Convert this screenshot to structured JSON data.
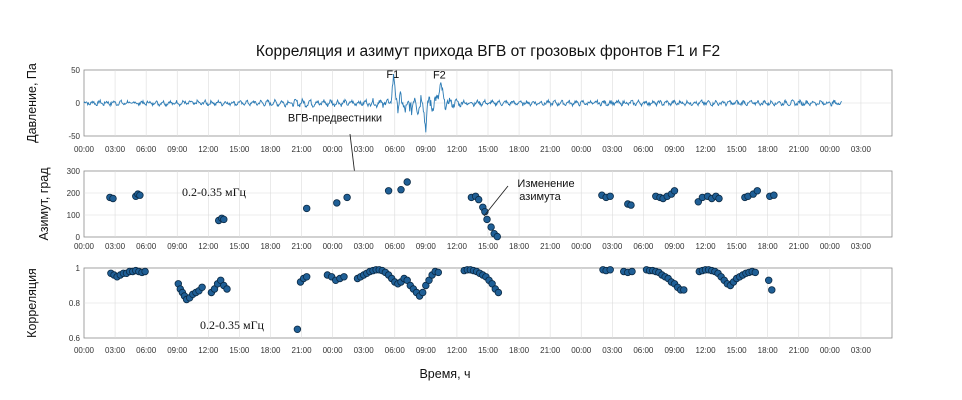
{
  "chart_data": {
    "type": "multi-panel",
    "title": "Корреляция и азимут прихода ВГВ от грозовых фронтов F1 и F2",
    "xlabel": "Время, ч",
    "x_tick_labels": [
      "00:00",
      "03:00",
      "06:00",
      "09:00",
      "12:00",
      "15:00",
      "18:00",
      "21:00",
      "00:00",
      "03:00",
      "06:00",
      "09:00",
      "12:00",
      "15:00",
      "18:00",
      "21:00",
      "00:00",
      "03:00",
      "06:00",
      "09:00",
      "12:00",
      "15:00",
      "18:00",
      "21:00",
      "00:00",
      "03:00"
    ],
    "x_tick_values_h": [
      0,
      3,
      6,
      9,
      12,
      15,
      18,
      21,
      24,
      27,
      30,
      33,
      36,
      39,
      42,
      45,
      48,
      51,
      54,
      57,
      60,
      63,
      66,
      69,
      72,
      75
    ],
    "xlim_h": [
      0,
      78
    ],
    "panels": [
      {
        "id": "pressure",
        "type": "line",
        "ylabel": "Давление, Па",
        "ylim": [
          -50,
          50
        ],
        "y_tick_values": [
          50,
          0,
          -50
        ],
        "y_tick_labels": [
          "50",
          "0",
          "-50"
        ],
        "color": "#2b7bb5",
        "series_description": "noise baseline ±5 Pa with bursts near F1 and F2",
        "events": [
          {
            "label": "F1",
            "x_h": 30.0,
            "y": 38
          },
          {
            "label": "F2",
            "x_h": 34.5,
            "y": 37
          }
        ],
        "annotation": {
          "text": "ВГВ-предвестники",
          "x_h": 25.0,
          "y": -28
        }
      },
      {
        "id": "azimuth",
        "type": "scatter",
        "ylabel": "Азимут, град",
        "ylim": [
          0,
          300
        ],
        "y_tick_values": [
          300,
          200,
          100,
          0
        ],
        "y_tick_labels": [
          "300",
          "200",
          "100",
          "0"
        ],
        "color": "#1f5f96",
        "band_label": "0.2-0.35 мГц",
        "annotation": {
          "text_line1": "Изменение",
          "text_line2": "азимута",
          "x_h": 40.3,
          "y": 210
        },
        "points": [
          [
            2.5,
            180
          ],
          [
            2.8,
            175
          ],
          [
            5.0,
            185
          ],
          [
            5.2,
            195
          ],
          [
            5.4,
            190
          ],
          [
            13.0,
            75
          ],
          [
            13.3,
            85
          ],
          [
            13.5,
            80
          ],
          [
            21.5,
            130
          ],
          [
            24.4,
            155
          ],
          [
            25.4,
            180
          ],
          [
            29.4,
            210
          ],
          [
            30.6,
            215
          ],
          [
            31.2,
            250
          ],
          [
            37.4,
            180
          ],
          [
            37.8,
            185
          ],
          [
            38.1,
            170
          ],
          [
            38.5,
            135
          ],
          [
            38.7,
            115
          ],
          [
            38.9,
            80
          ],
          [
            39.3,
            45
          ],
          [
            39.6,
            15
          ],
          [
            39.9,
            2
          ],
          [
            50.0,
            190
          ],
          [
            50.4,
            180
          ],
          [
            50.8,
            185
          ],
          [
            52.5,
            150
          ],
          [
            52.8,
            145
          ],
          [
            55.2,
            185
          ],
          [
            55.6,
            180
          ],
          [
            55.9,
            175
          ],
          [
            56.3,
            185
          ],
          [
            56.7,
            195
          ],
          [
            57.0,
            210
          ],
          [
            59.3,
            160
          ],
          [
            59.7,
            180
          ],
          [
            60.2,
            185
          ],
          [
            60.6,
            175
          ],
          [
            61.0,
            185
          ],
          [
            61.3,
            175
          ],
          [
            63.8,
            180
          ],
          [
            64.1,
            185
          ],
          [
            64.6,
            195
          ],
          [
            65.0,
            210
          ],
          [
            66.2,
            185
          ],
          [
            66.6,
            190
          ]
        ]
      },
      {
        "id": "correlation",
        "type": "scatter",
        "ylabel": "Корреляция",
        "ylim": [
          0.6,
          1.0
        ],
        "y_tick_values": [
          1.0,
          0.8,
          0.6
        ],
        "y_tick_labels": [
          "1",
          "0.8",
          "0.6"
        ],
        "color": "#1f5f96",
        "band_label": "0.2-0.35 мГц",
        "points": [
          [
            2.6,
            0.97
          ],
          [
            2.9,
            0.96
          ],
          [
            3.2,
            0.95
          ],
          [
            3.5,
            0.96
          ],
          [
            3.8,
            0.97
          ],
          [
            4.1,
            0.97
          ],
          [
            4.4,
            0.98
          ],
          [
            4.7,
            0.98
          ],
          [
            5.0,
            0.985
          ],
          [
            5.3,
            0.98
          ],
          [
            5.6,
            0.975
          ],
          [
            5.9,
            0.98
          ],
          [
            9.1,
            0.91
          ],
          [
            9.3,
            0.88
          ],
          [
            9.5,
            0.86
          ],
          [
            9.7,
            0.84
          ],
          [
            9.9,
            0.82
          ],
          [
            10.2,
            0.83
          ],
          [
            10.5,
            0.85
          ],
          [
            10.8,
            0.86
          ],
          [
            11.1,
            0.87
          ],
          [
            11.4,
            0.89
          ],
          [
            12.3,
            0.86
          ],
          [
            12.6,
            0.88
          ],
          [
            12.9,
            0.91
          ],
          [
            13.2,
            0.93
          ],
          [
            13.5,
            0.9
          ],
          [
            13.8,
            0.88
          ],
          [
            20.6,
            0.65
          ],
          [
            20.9,
            0.92
          ],
          [
            21.2,
            0.94
          ],
          [
            21.5,
            0.95
          ],
          [
            23.5,
            0.96
          ],
          [
            23.9,
            0.95
          ],
          [
            24.3,
            0.93
          ],
          [
            24.7,
            0.94
          ],
          [
            25.1,
            0.95
          ],
          [
            26.4,
            0.94
          ],
          [
            26.7,
            0.95
          ],
          [
            27.0,
            0.96
          ],
          [
            27.3,
            0.97
          ],
          [
            27.6,
            0.98
          ],
          [
            27.9,
            0.985
          ],
          [
            28.2,
            0.99
          ],
          [
            28.5,
            0.99
          ],
          [
            28.8,
            0.985
          ],
          [
            29.1,
            0.975
          ],
          [
            29.4,
            0.96
          ],
          [
            29.7,
            0.94
          ],
          [
            30.0,
            0.92
          ],
          [
            30.3,
            0.91
          ],
          [
            30.6,
            0.92
          ],
          [
            30.9,
            0.94
          ],
          [
            31.2,
            0.93
          ],
          [
            31.5,
            0.9
          ],
          [
            31.8,
            0.88
          ],
          [
            32.1,
            0.86
          ],
          [
            32.4,
            0.84
          ],
          [
            32.7,
            0.86
          ],
          [
            33.0,
            0.9
          ],
          [
            33.3,
            0.93
          ],
          [
            33.6,
            0.96
          ],
          [
            33.9,
            0.98
          ],
          [
            34.2,
            0.975
          ],
          [
            36.7,
            0.985
          ],
          [
            37.0,
            0.99
          ],
          [
            37.3,
            0.99
          ],
          [
            37.6,
            0.985
          ],
          [
            37.9,
            0.98
          ],
          [
            38.2,
            0.97
          ],
          [
            38.5,
            0.96
          ],
          [
            38.8,
            0.95
          ],
          [
            39.1,
            0.93
          ],
          [
            39.4,
            0.91
          ],
          [
            39.7,
            0.88
          ],
          [
            40.0,
            0.86
          ],
          [
            50.1,
            0.99
          ],
          [
            50.4,
            0.985
          ],
          [
            50.8,
            0.99
          ],
          [
            52.1,
            0.98
          ],
          [
            52.5,
            0.975
          ],
          [
            52.9,
            0.98
          ],
          [
            54.3,
            0.99
          ],
          [
            54.6,
            0.985
          ],
          [
            54.9,
            0.985
          ],
          [
            55.2,
            0.98
          ],
          [
            55.5,
            0.975
          ],
          [
            55.8,
            0.96
          ],
          [
            56.1,
            0.95
          ],
          [
            56.4,
            0.94
          ],
          [
            56.7,
            0.92
          ],
          [
            57.0,
            0.91
          ],
          [
            57.3,
            0.89
          ],
          [
            57.6,
            0.875
          ],
          [
            57.9,
            0.875
          ],
          [
            59.4,
            0.98
          ],
          [
            59.7,
            0.985
          ],
          [
            60.0,
            0.99
          ],
          [
            60.3,
            0.99
          ],
          [
            60.6,
            0.985
          ],
          [
            60.9,
            0.98
          ],
          [
            61.2,
            0.97
          ],
          [
            61.5,
            0.95
          ],
          [
            61.8,
            0.93
          ],
          [
            62.1,
            0.91
          ],
          [
            62.4,
            0.9
          ],
          [
            62.7,
            0.92
          ],
          [
            63.0,
            0.94
          ],
          [
            63.3,
            0.95
          ],
          [
            63.6,
            0.96
          ],
          [
            63.9,
            0.97
          ],
          [
            64.2,
            0.975
          ],
          [
            64.5,
            0.98
          ],
          [
            64.8,
            0.975
          ],
          [
            66.1,
            0.93
          ],
          [
            66.4,
            0.875
          ]
        ]
      }
    ],
    "grid": true
  }
}
